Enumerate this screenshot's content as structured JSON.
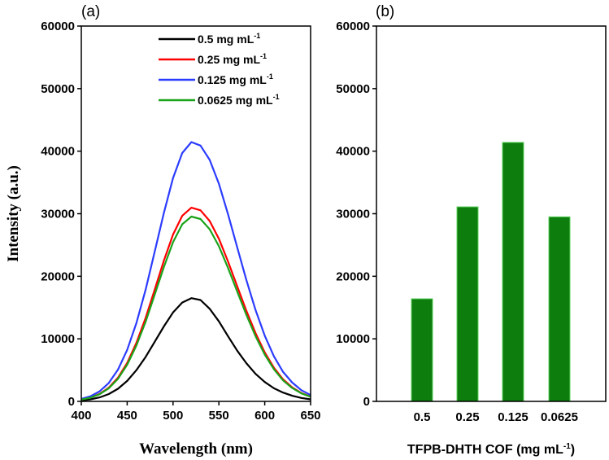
{
  "chart_data": [
    {
      "type": "line",
      "panel_label": "(a)",
      "xlabel": "Wavelength (nm)",
      "ylabel": "Intensity (a.u.)",
      "xlim": [
        400,
        650
      ],
      "ylim": [
        0,
        60000
      ],
      "xticks": [
        400,
        450,
        500,
        550,
        600,
        650
      ],
      "yticks": [
        0,
        10000,
        20000,
        30000,
        40000,
        50000,
        60000
      ],
      "legend_placement": "top-right",
      "x": [
        400,
        410,
        420,
        430,
        440,
        450,
        460,
        470,
        480,
        490,
        500,
        510,
        520,
        530,
        540,
        550,
        560,
        570,
        580,
        590,
        600,
        610,
        620,
        630,
        640,
        650
      ],
      "series": [
        {
          "name": "0.5 mg mL",
          "sup": "-1",
          "color": "#000000",
          "values": [
            160,
            330,
            640,
            1170,
            2020,
            3270,
            4980,
            7080,
            9510,
            11980,
            14210,
            15800,
            16500,
            16200,
            14800,
            12800,
            10400,
            8100,
            6100,
            4400,
            3100,
            2100,
            1400,
            900,
            550,
            320
          ]
        },
        {
          "name": "0.25 mg mL",
          "sup": "-1",
          "color": "#ff0000",
          "values": [
            300,
            610,
            1200,
            2200,
            3790,
            6140,
            9340,
            13300,
            17850,
            22480,
            26670,
            29660,
            30960,
            30550,
            28830,
            26000,
            22340,
            18380,
            14490,
            10910,
            7840,
            5380,
            3510,
            2240,
            1330,
            760
          ]
        },
        {
          "name": "0.125 mg mL",
          "sup": "-1",
          "color": "#2b3cff",
          "values": [
            400,
            820,
            1610,
            2940,
            5070,
            8220,
            12500,
            17800,
            23900,
            30100,
            35700,
            39700,
            41450,
            40900,
            38600,
            34800,
            29900,
            24600,
            19400,
            14600,
            10500,
            7200,
            4700,
            3000,
            1780,
            1020
          ]
        },
        {
          "name": "0.0625 mg mL",
          "sup": "-1",
          "color": "#1aa31a",
          "values": [
            285,
            585,
            1150,
            2100,
            3610,
            5860,
            8910,
            12690,
            17040,
            21460,
            25450,
            28310,
            29550,
            29160,
            27520,
            24810,
            21320,
            17540,
            13830,
            10410,
            7490,
            5130,
            3350,
            2140,
            1270,
            730
          ]
        }
      ]
    },
    {
      "type": "bar",
      "panel_label": "(b)",
      "xlabel": "TFPB-DHTH COF (mg mL",
      "xlabel_sup": "-1",
      "xlabel_end": ")",
      "ylim": [
        0,
        60000
      ],
      "yticks": [
        0,
        10000,
        20000,
        30000,
        40000,
        50000,
        60000
      ],
      "categories": [
        "0.5",
        "0.25",
        "0.125",
        "0.0625"
      ],
      "values": [
        16400,
        31100,
        41400,
        29500
      ],
      "color": "#0d7d0d",
      "edge_color": "#5fd35f"
    }
  ]
}
